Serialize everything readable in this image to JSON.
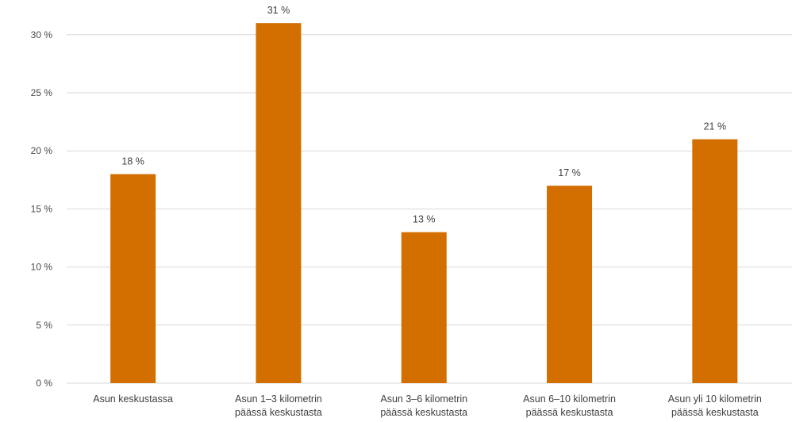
{
  "chart_data": {
    "type": "bar",
    "categories": [
      [
        "Asun keskustassa"
      ],
      [
        "Asun 1–3 kilometrin",
        "päässä keskustasta"
      ],
      [
        "Asun 3–6 kilometrin",
        "päässä keskustasta"
      ],
      [
        "Asun 6–10 kilometrin",
        "päässä keskustasta"
      ],
      [
        "Asun yli 10 kilometrin",
        "päässä keskustasta"
      ]
    ],
    "values": [
      18,
      31,
      13,
      17,
      21
    ],
    "data_labels": [
      "18 %",
      "31 %",
      "13 %",
      "17 %",
      "21 %"
    ],
    "y_ticks": [
      0,
      5,
      10,
      15,
      20,
      25,
      30
    ],
    "y_tick_labels": [
      "0 %",
      "5 %",
      "10 %",
      "15 %",
      "20 %",
      "25 %",
      "30 %"
    ],
    "ylim": [
      0,
      30
    ],
    "grid": true,
    "bar_color": "#D36E00",
    "title": "",
    "xlabel": "",
    "ylabel": ""
  }
}
